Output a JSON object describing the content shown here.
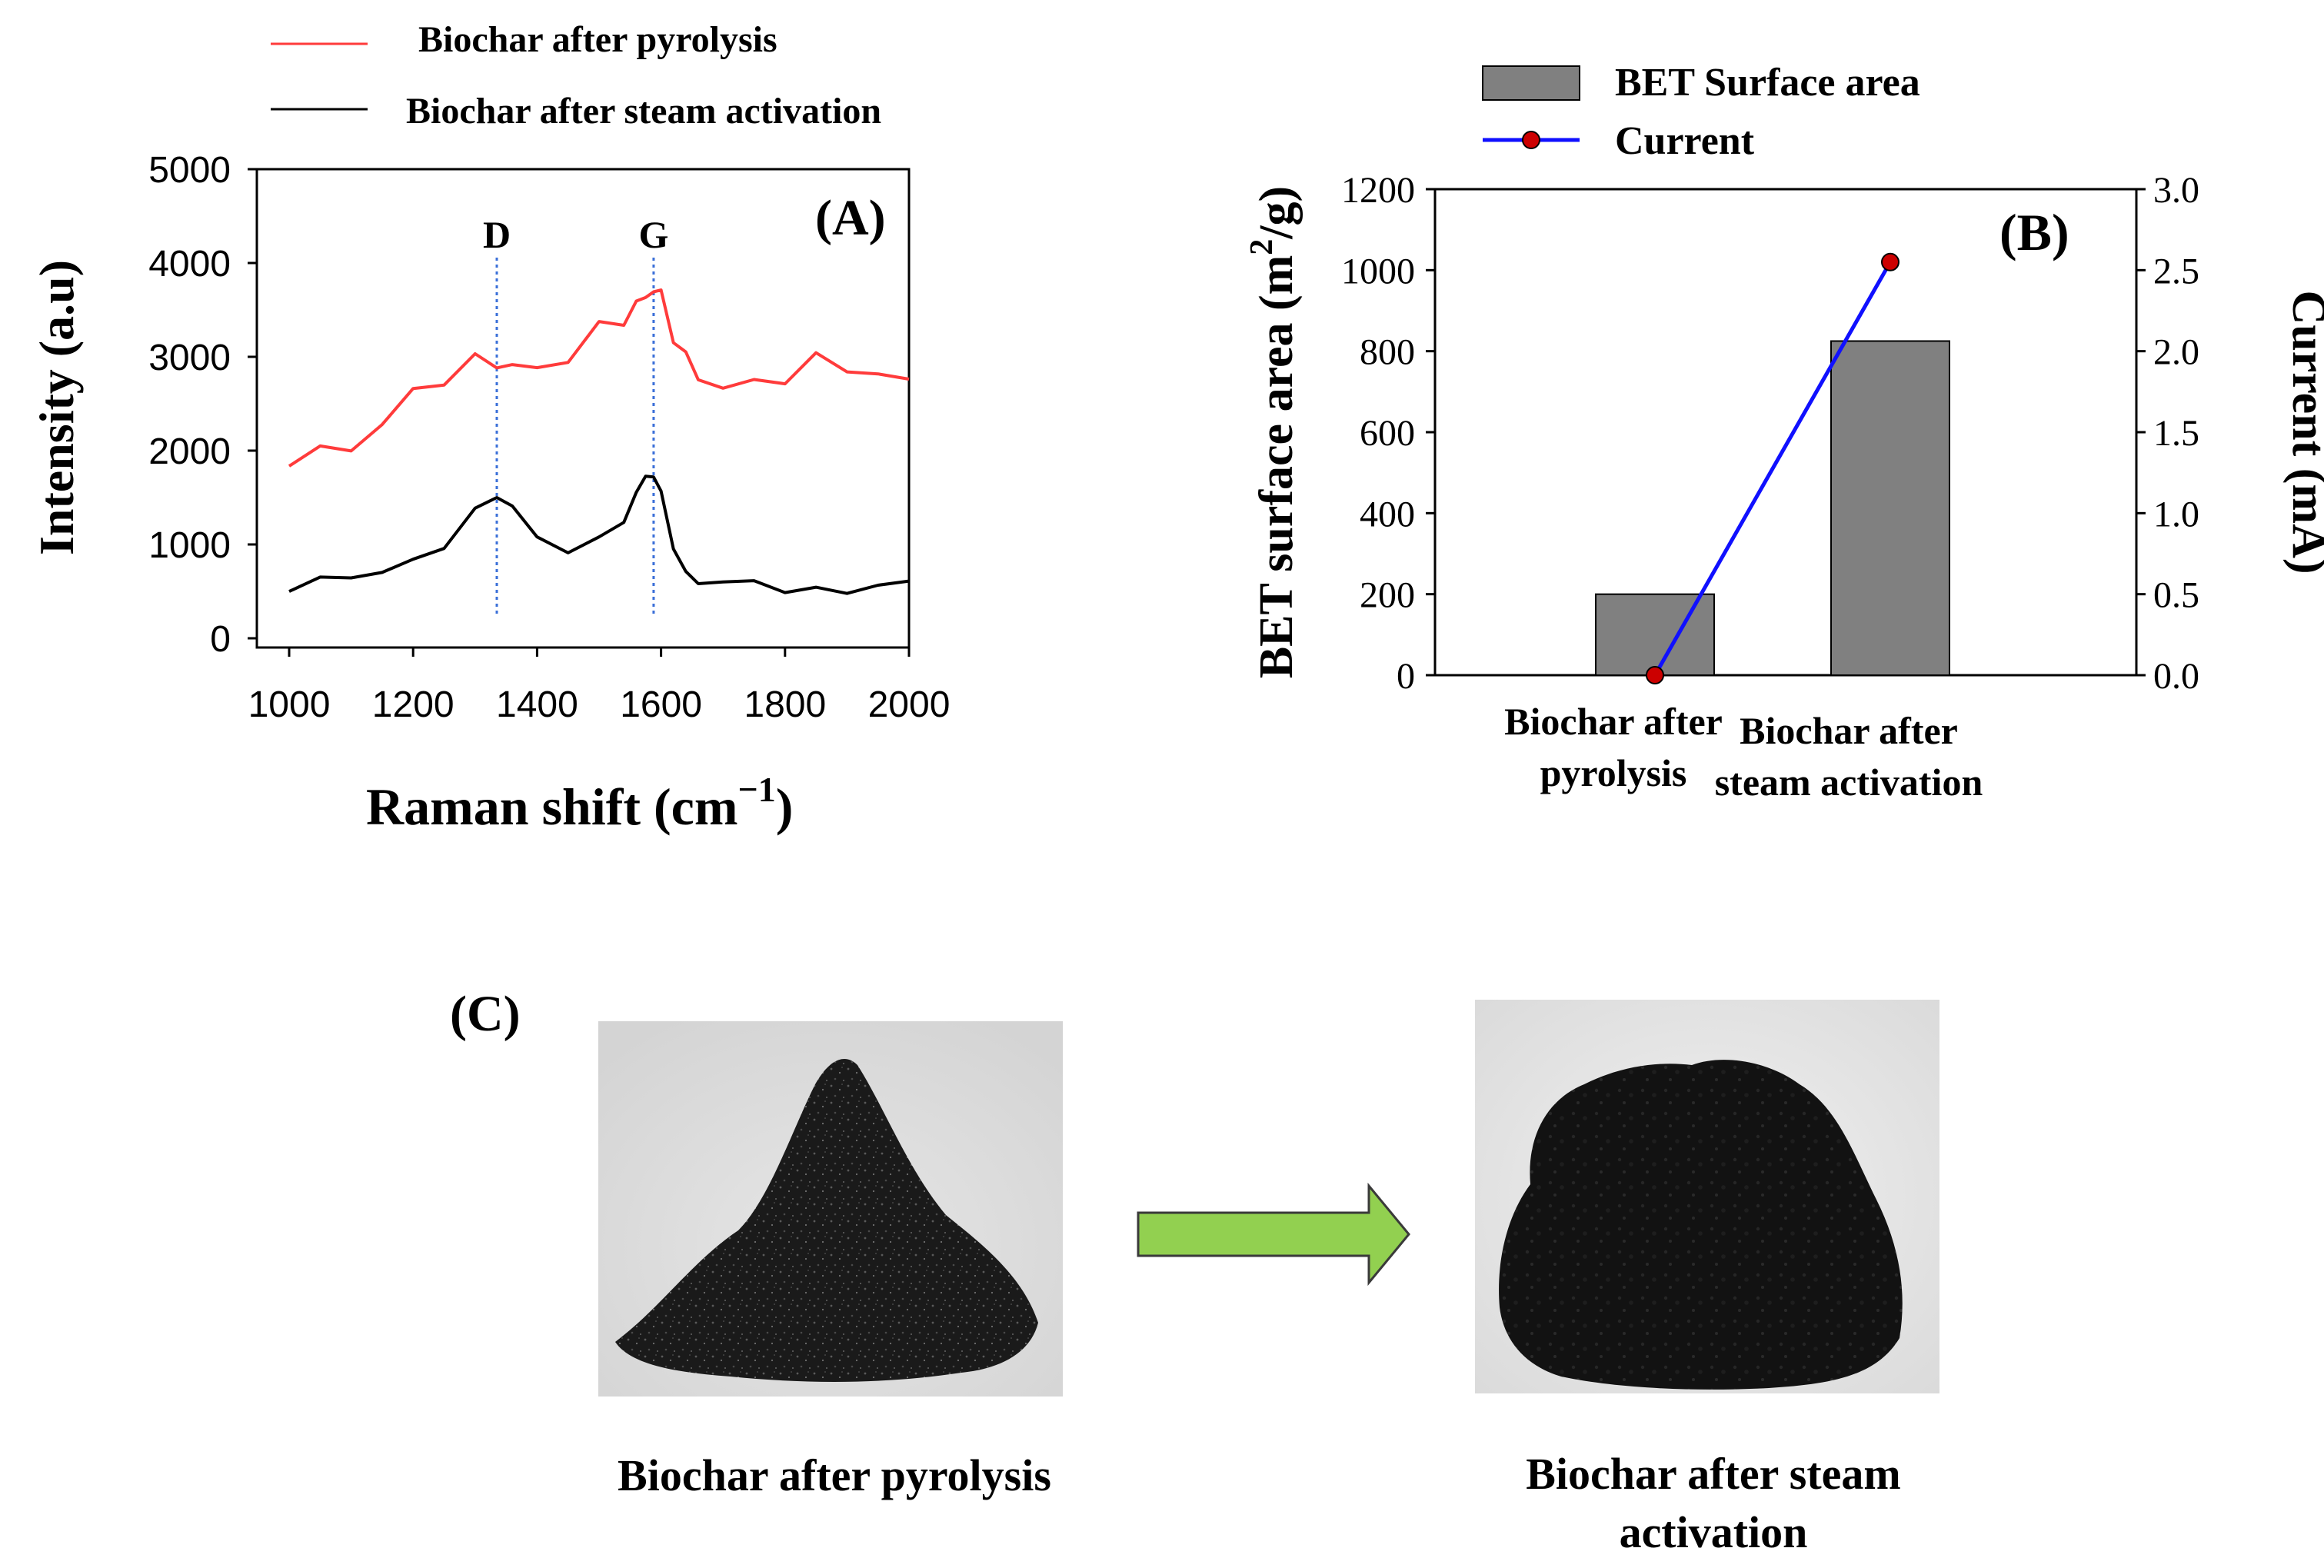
{
  "chart_data": [
    {
      "panel_label": "(A)",
      "type": "line",
      "xlabel": "Raman shift (cm",
      "xlabel_sup": "−1",
      "xlabel_close": ")",
      "ylabel": "Intensity (a.u)",
      "xlim": [
        1000,
        2000
      ],
      "ylim": [
        0,
        5000
      ],
      "xticks": [
        "1000",
        "1200",
        "1400",
        "1600",
        "1800",
        "2000"
      ],
      "yticks": [
        "0",
        "1000",
        "2000",
        "3000",
        "4000",
        "5000"
      ],
      "grid": false,
      "legend_position": "top",
      "annotations": [
        {
          "text": "D",
          "x": 1335
        },
        {
          "text": "G",
          "x": 1588
        }
      ],
      "series": [
        {
          "name": "Biochar after pyrolysis",
          "color": "#ff3b3b",
          "x": [
            1000,
            1050,
            1100,
            1150,
            1200,
            1250,
            1300,
            1335,
            1360,
            1400,
            1450,
            1500,
            1540,
            1560,
            1575,
            1588,
            1600,
            1620,
            1640,
            1660,
            1700,
            1750,
            1800,
            1850,
            1900,
            1950,
            2000
          ],
          "y": [
            1950,
            2050,
            2150,
            2300,
            2500,
            2700,
            2900,
            3050,
            3000,
            2880,
            2950,
            3150,
            3400,
            3600,
            3750,
            3800,
            3550,
            3150,
            2900,
            2850,
            2800,
            2750,
            2780,
            2820,
            2840,
            2830,
            2830
          ]
        },
        {
          "name": "Biochar after steam activation",
          "color": "#000000",
          "x": [
            1000,
            1050,
            1100,
            1150,
            1200,
            1250,
            1300,
            1335,
            1360,
            1400,
            1450,
            1500,
            1540,
            1560,
            1575,
            1588,
            1600,
            1620,
            1640,
            1660,
            1700,
            1750,
            1800,
            1850,
            1900,
            1950,
            2000
          ],
          "y": [
            550,
            570,
            620,
            700,
            850,
            1050,
            1350,
            1500,
            1350,
            1050,
            980,
            1080,
            1300,
            1500,
            1680,
            1720,
            1550,
            1050,
            700,
            580,
            560,
            550,
            550,
            545,
            545,
            545,
            545
          ]
        }
      ]
    },
    {
      "panel_label": "(B)",
      "type": "bar",
      "categories": [
        [
          "Biochar after",
          "pyrolysis"
        ],
        [
          "Biochar after",
          "steam activation"
        ]
      ],
      "ylabel": "BET surface area (m",
      "ylabel_sup": "2",
      "ylabel_close": "/g)",
      "y2label": "Current (mA)",
      "ylim": [
        0,
        1200
      ],
      "y2lim": [
        0,
        3.0
      ],
      "yticks": [
        "0",
        "200",
        "400",
        "600",
        "800",
        "1000",
        "1200"
      ],
      "y2ticks": [
        "0.0",
        "0.5",
        "1.0",
        "1.5",
        "2.0",
        "2.5",
        "3.0"
      ],
      "grid": false,
      "legend_position": "top",
      "series": [
        {
          "name": "BET Surface area",
          "kind": "bar",
          "axis": "left",
          "color": "#808080",
          "values": [
            200,
            825
          ]
        },
        {
          "name": "Current",
          "kind": "line",
          "axis": "right",
          "color": "#1010ff",
          "marker_color": "#cc0000",
          "values": [
            0.0,
            2.55
          ]
        }
      ]
    }
  ],
  "photos": {
    "panel_label": "(C)",
    "left_caption": "Biochar after pyrolysis",
    "right_caption_line1": "Biochar after steam",
    "right_caption_line2": "activation",
    "arrow_color": "#92d050"
  }
}
